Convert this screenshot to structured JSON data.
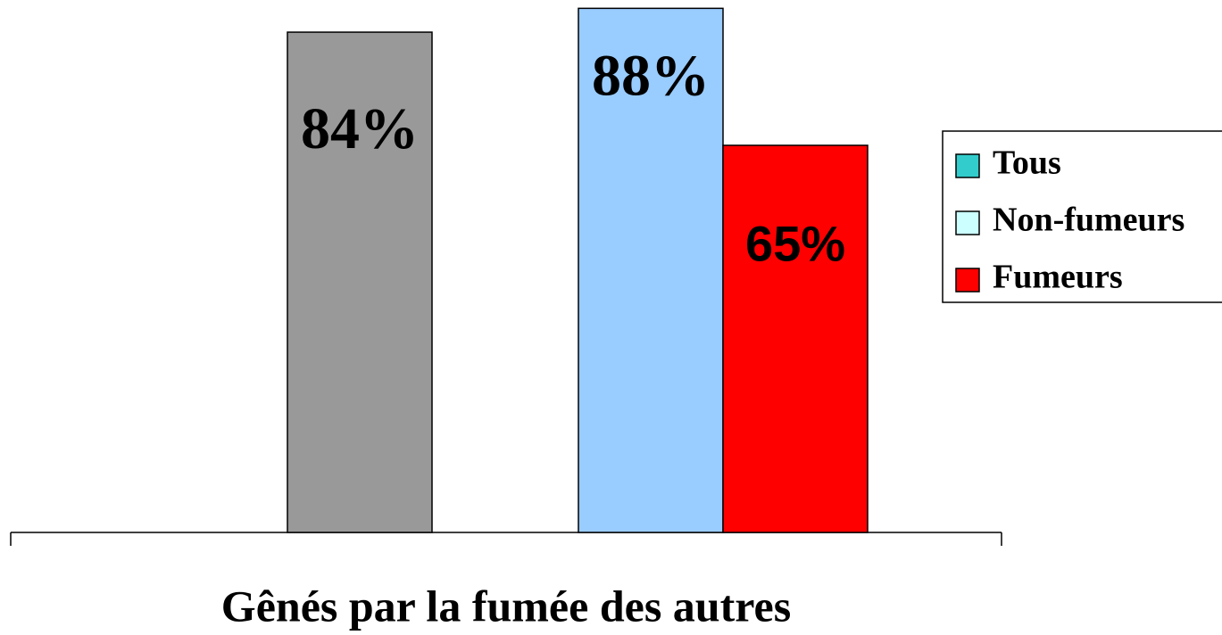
{
  "chart_data": {
    "type": "bar",
    "categories": [
      "Gênés par la fumée des autres"
    ],
    "series": [
      {
        "name": "Tous",
        "color": "#999999",
        "legend_color": "#33cccc",
        "values": [
          84
        ],
        "value_labels": [
          "84%"
        ]
      },
      {
        "name": "Non-fumeurs",
        "color": "#99ccff",
        "legend_color": "#ccffff",
        "values": [
          88
        ],
        "value_labels": [
          "88%"
        ]
      },
      {
        "name": "Fumeurs",
        "color": "#ff0000",
        "legend_color": "#ff0000",
        "values": [
          65
        ],
        "value_labels": [
          "65%"
        ]
      }
    ],
    "ylim": [
      0,
      89.4
    ],
    "legend": "right"
  }
}
